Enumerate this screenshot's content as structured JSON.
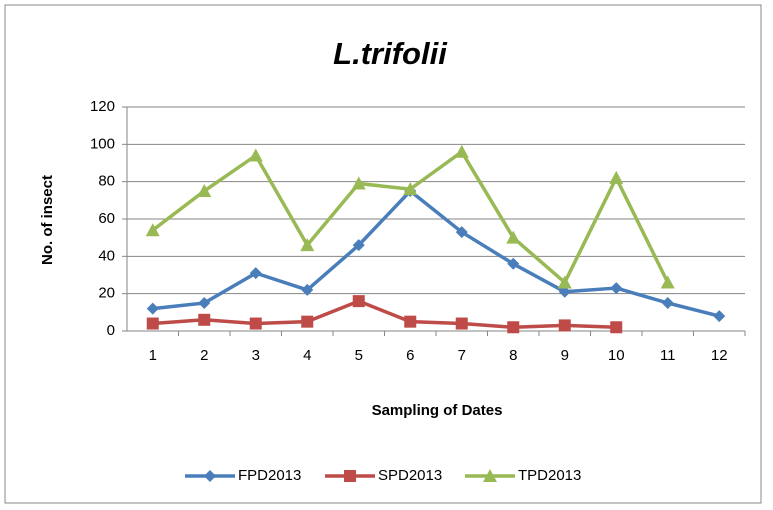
{
  "chart_data": {
    "type": "line",
    "title": "L.trifolii",
    "x_label": "Sampling of Dates",
    "y_label": "No. of insect",
    "categories": [
      1,
      2,
      3,
      4,
      5,
      6,
      7,
      8,
      9,
      10,
      11,
      12
    ],
    "series": [
      {
        "name": "FPD2013",
        "color": "#4a7ebb",
        "marker": "diamond",
        "values": [
          12,
          15,
          31,
          22,
          46,
          75,
          53,
          36,
          21,
          23,
          15,
          8
        ]
      },
      {
        "name": "SPD2013",
        "color": "#be4b48",
        "marker": "square",
        "values": [
          4,
          6,
          4,
          5,
          16,
          5,
          4,
          2,
          3,
          2,
          null,
          null
        ]
      },
      {
        "name": "TPD2013",
        "color": "#98b954",
        "marker": "triangle",
        "values": [
          54,
          75,
          94,
          46,
          79,
          76,
          96,
          50,
          26,
          82,
          26,
          null
        ]
      }
    ],
    "ylim": [
      0,
      120
    ],
    "yticks": [
      0,
      20,
      40,
      60,
      80,
      100,
      120
    ],
    "grid": true,
    "legend": "bottom"
  }
}
